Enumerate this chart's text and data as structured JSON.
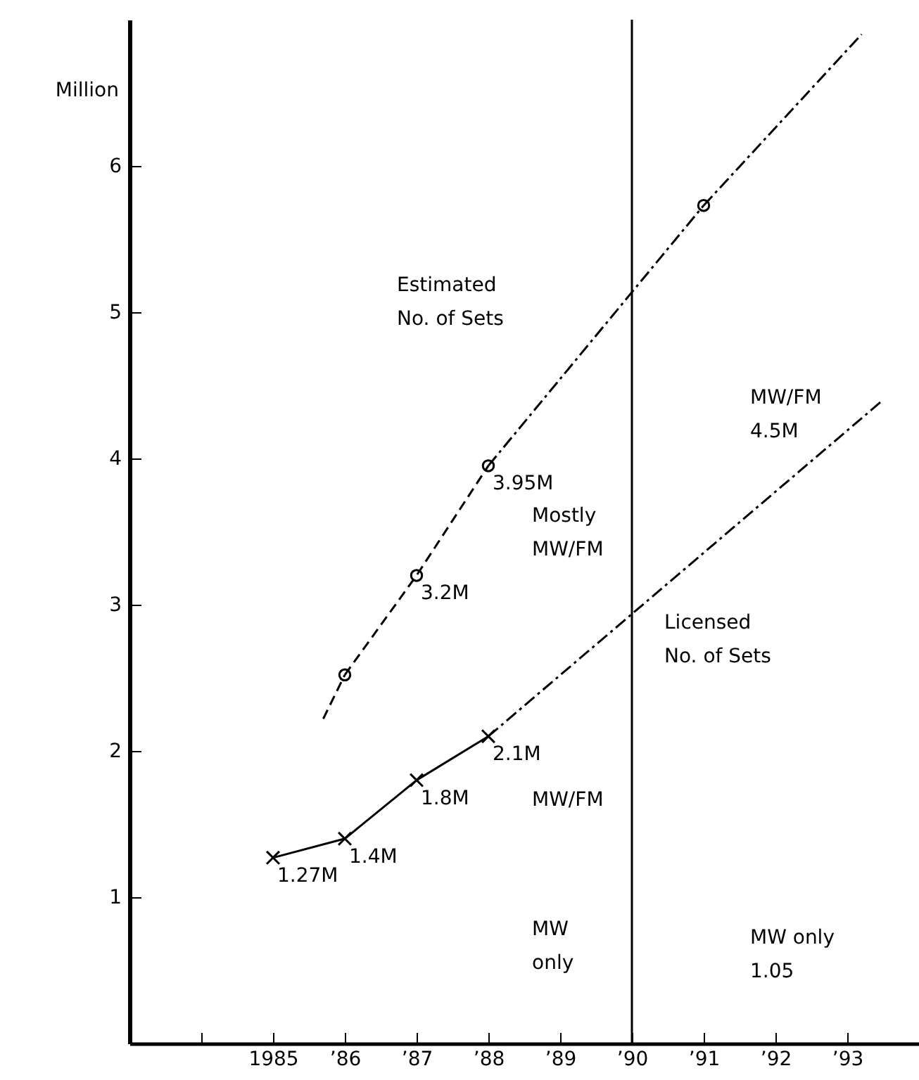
{
  "chart_data": {
    "type": "line",
    "ylabel": "Million",
    "xlim": [
      1983,
      1994
    ],
    "xticks": [
      {
        "value": 1984,
        "label": null
      },
      1985,
      {
        "value": 1986,
        "label": "’86"
      },
      {
        "value": 1987,
        "label": "’87"
      },
      {
        "value": 1988,
        "label": "’88"
      },
      {
        "value": 1989,
        "label": "’89"
      },
      {
        "value": 1990,
        "label": "’90"
      },
      {
        "value": 1991,
        "label": "’91"
      },
      {
        "value": 1992,
        "label": "’92"
      },
      {
        "value": 1993,
        "label": "’93"
      }
    ],
    "ylim": [
      0,
      7
    ],
    "yticks": [
      1,
      2,
      3,
      4,
      5,
      6
    ],
    "grid": false,
    "series": [
      {
        "color": "#000000",
        "line_style": "solid",
        "marker": "cross",
        "x": [
          1985,
          1986,
          1987,
          1988
        ],
        "values": [
          1.27,
          1.4,
          1.8,
          2.1
        ],
        "value_labels": [
          "1.27M",
          "1.4M",
          "1.8M",
          "2.1M"
        ]
      },
      {
        "color": "#000000",
        "line_style": "dashed",
        "marker": "circle",
        "x": [
          1986,
          1987,
          1988
        ],
        "values": [
          2.52,
          3.2,
          3.95
        ],
        "value_labels": [
          null,
          "3.2M",
          "3.95M"
        ]
      },
      {
        "type": "scatter",
        "color": "#000000",
        "marker": "circle",
        "x": [
          1991
        ],
        "values": [
          5.73
        ]
      },
      {
        "color": "#000000",
        "line_style": "dotted",
        "marker": "none",
        "x": [
          1988,
          1991
        ],
        "values": [
          3.95,
          5.73
        ]
      },
      {
        "color": "#000000",
        "line_style": "dashed",
        "marker": "none",
        "x": [
          1985.7,
          1986
        ],
        "values": [
          2.22,
          2.52
        ]
      },
      {
        "color": "#000000",
        "line_style": "dotted",
        "marker": "none",
        "x": [
          1991,
          1993.2
        ],
        "values": [
          5.73,
          6.9
        ]
      },
      {
        "color": "#000000",
        "line_style": "dotted",
        "marker": "none",
        "x": [
          1988,
          1993.5
        ],
        "values": [
          2.1,
          4.4
        ]
      }
    ],
    "ref_lines": [
      {
        "axis": "x",
        "value": 1990,
        "color": "#000000"
      }
    ],
    "annotations": [
      "Estimated\nNo. of Sets",
      "Licensed\nNo. of Sets",
      "Mostly\nMW/FM",
      "MW/FM",
      "MW\nonly",
      "MW/FM\n4.5M",
      "MW only\n1.05"
    ]
  }
}
